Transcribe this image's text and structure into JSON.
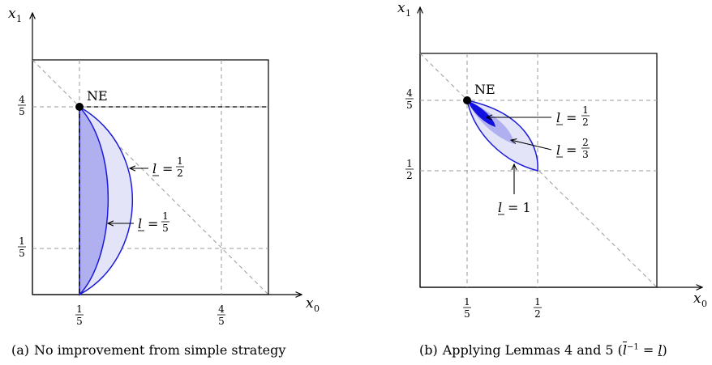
{
  "panel_a": {
    "axis_x_label": "x",
    "axis_x_sub": "0",
    "axis_y_label": "x",
    "axis_y_sub": "1",
    "ne_label": "NE",
    "tick_x_1": {
      "num": "1",
      "den": "5"
    },
    "tick_x_2": {
      "num": "4",
      "den": "5"
    },
    "tick_y_1": {
      "num": "4",
      "den": "5"
    },
    "tick_y_2": {
      "num": "1",
      "den": "5"
    },
    "annotation_half": {
      "var": "l",
      "eq": "=",
      "num": "1",
      "den": "2"
    },
    "annotation_fifth": {
      "var": "l",
      "eq": "=",
      "num": "1",
      "den": "5"
    },
    "caption_tag": "(a)",
    "caption_text": "No improvement from simple strategy"
  },
  "panel_b": {
    "axis_x_label": "x",
    "axis_x_sub": "0",
    "axis_y_label": "x",
    "axis_y_sub": "1",
    "ne_label": "NE",
    "tick_x_1": {
      "num": "1",
      "den": "5"
    },
    "tick_x_2": {
      "num": "1",
      "den": "2"
    },
    "tick_y_1": {
      "num": "4",
      "den": "5"
    },
    "tick_y_2": {
      "num": "1",
      "den": "2"
    },
    "annotation_half": {
      "var": "l",
      "eq": "=",
      "num": "1",
      "den": "2"
    },
    "annotation_twothirds": {
      "var": "l",
      "eq": "=",
      "num": "2",
      "den": "3"
    },
    "annotation_one": {
      "var": "l",
      "eq": "= 1"
    },
    "caption_tag": "(b)",
    "caption_text": "Applying Lemmas 4 and 5 (",
    "caption_lbar": "l",
    "caption_sup": "−1",
    "caption_mid": " = ",
    "caption_lunder": "l",
    "caption_end": ")"
  },
  "colors": {
    "curve_blue": "#1a1adb",
    "fill_light": "#e4e4f8",
    "fill_mid": "#b0b0f0",
    "fill_dark": "#1010e0",
    "grid_gray": "#9a9a9a"
  }
}
